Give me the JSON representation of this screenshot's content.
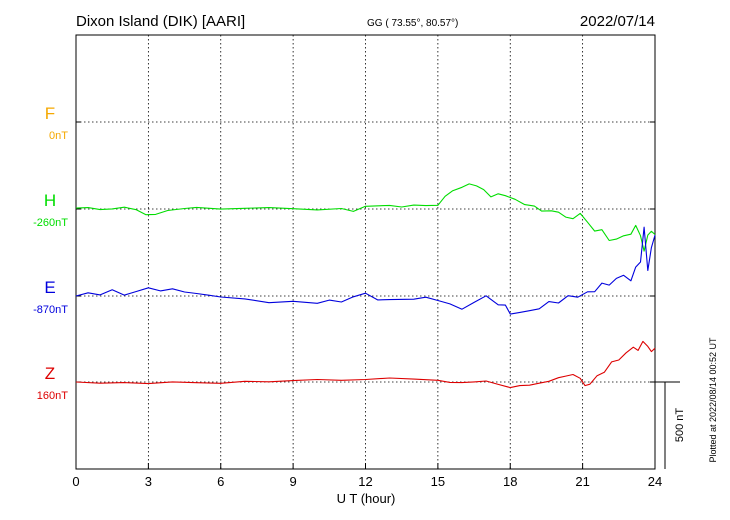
{
  "header": {
    "station": "Dixon Island (DIK)  [AARI]",
    "coords": "GG ( 73.55°,  80.57°)",
    "date": "2022/07/14"
  },
  "side_note": "Plotted at 2022/08/14 00:52 UT",
  "scale_label": "500 nT",
  "colors": {
    "F": "#f5a800",
    "H": "#00dd00",
    "E": "#0000dd",
    "Z": "#dd0000",
    "axis": "#000000"
  },
  "chart_data": {
    "type": "line",
    "xlabel": "U T (hour)",
    "xlim": [
      0,
      24
    ],
    "xticks": [
      0,
      3,
      6,
      9,
      12,
      15,
      18,
      21,
      24
    ],
    "xtick_labels": [
      "0",
      "3",
      "6",
      "9",
      "12",
      "15",
      "18",
      "21",
      "24"
    ],
    "scale_nT_per_division": 500,
    "grid": true,
    "series": [
      {
        "name": "F",
        "baseline": "0nT",
        "x": [],
        "y": []
      },
      {
        "name": "H",
        "baseline": "-260nT",
        "x": [
          0,
          0.5,
          1,
          1.5,
          2,
          2.5,
          2.9,
          3.3,
          3.8,
          4.5,
          5,
          6,
          7,
          8,
          9,
          10,
          11,
          11.5,
          12,
          13,
          13.5,
          14,
          14.5,
          15,
          15.3,
          15.6,
          16,
          16.3,
          16.6,
          16.9,
          17.2,
          17.5,
          17.8,
          18.2,
          18.6,
          19,
          19.3,
          19.7,
          20,
          20.3,
          20.6,
          20.9,
          21.2,
          21.5,
          21.8,
          22.1,
          22.4,
          22.7,
          23,
          23.2,
          23.4,
          23.55,
          23.7,
          23.85,
          24
        ],
        "y": [
          5,
          10,
          0,
          5,
          15,
          0,
          -30,
          -30,
          -10,
          0,
          5,
          -5,
          0,
          5,
          0,
          -5,
          5,
          -10,
          20,
          25,
          15,
          25,
          20,
          20,
          70,
          100,
          120,
          140,
          130,
          110,
          70,
          90,
          80,
          60,
          30,
          20,
          -10,
          -10,
          -20,
          -50,
          -60,
          -30,
          -80,
          -130,
          -120,
          -180,
          -170,
          -150,
          -140,
          -90,
          -150,
          -240,
          -150,
          -130,
          -150
        ]
      },
      {
        "name": "E",
        "baseline": "-870nT",
        "x": [
          0,
          0.5,
          1,
          1.5,
          2,
          2.5,
          3,
          3.5,
          4,
          4.5,
          5,
          5.5,
          6,
          7,
          8,
          9,
          10,
          10.5,
          11,
          11.5,
          12,
          12.5,
          13,
          14,
          14.5,
          15,
          15.5,
          16,
          16.5,
          17,
          17.5,
          17.8,
          18,
          18.4,
          18.8,
          19.2,
          19.6,
          20,
          20.4,
          20.8,
          21.2,
          21.5,
          21.8,
          22.1,
          22.4,
          22.7,
          23,
          23.2,
          23.4,
          23.55,
          23.7,
          23.85,
          24
        ],
        "y": [
          0,
          20,
          10,
          40,
          10,
          30,
          50,
          30,
          40,
          20,
          10,
          0,
          -10,
          -20,
          -40,
          -30,
          -40,
          -20,
          -30,
          0,
          20,
          -20,
          -20,
          -20,
          -10,
          -30,
          -50,
          -80,
          -40,
          0,
          -50,
          -50,
          -100,
          -90,
          -80,
          -70,
          -30,
          -40,
          0,
          -10,
          20,
          20,
          70,
          60,
          100,
          120,
          90,
          170,
          200,
          400,
          150,
          280,
          350
        ]
      },
      {
        "name": "Z",
        "baseline": "160nT",
        "x": [
          0,
          1,
          2,
          3,
          4,
          5,
          6,
          7,
          8,
          9,
          10,
          11,
          12,
          13,
          14,
          15,
          15.5,
          16,
          16.5,
          17,
          17.5,
          18,
          18.4,
          18.8,
          19.2,
          19.6,
          20,
          20.3,
          20.6,
          20.9,
          21.1,
          21.3,
          21.6,
          21.9,
          22.2,
          22.5,
          22.8,
          23.1,
          23.3,
          23.5,
          23.7,
          23.85,
          24
        ],
        "y": [
          0,
          -5,
          0,
          -5,
          5,
          0,
          -5,
          5,
          0,
          5,
          10,
          5,
          10,
          20,
          15,
          10,
          0,
          0,
          5,
          10,
          -10,
          -30,
          -20,
          -20,
          -10,
          0,
          20,
          30,
          40,
          20,
          -20,
          -10,
          40,
          60,
          120,
          130,
          170,
          200,
          180,
          230,
          200,
          170,
          190
        ]
      }
    ]
  }
}
